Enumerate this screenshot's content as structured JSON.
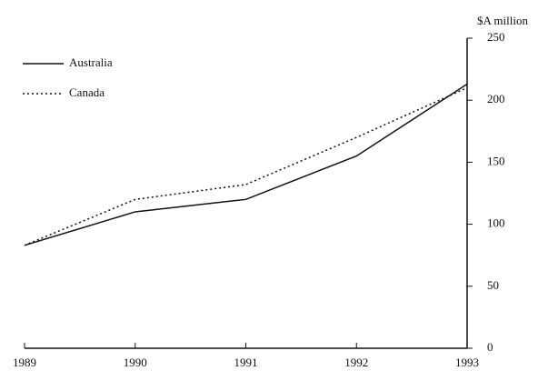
{
  "chart_data": {
    "type": "line",
    "y_label": "$A million",
    "x": [
      1989,
      1990,
      1991,
      1992,
      1993
    ],
    "series": [
      {
        "name": "Australia",
        "color": "#111111",
        "dash": "solid",
        "values": [
          83,
          110,
          120,
          155,
          213
        ]
      },
      {
        "name": "Canada",
        "color": "#111111",
        "dash": "dotted",
        "values": [
          83,
          120,
          132,
          170,
          210
        ]
      }
    ],
    "xlim": [
      1989,
      1993
    ],
    "xticks": [
      1989,
      1990,
      1991,
      1992,
      1993
    ],
    "ylim": [
      0,
      250
    ],
    "yticks": [
      0,
      50,
      100,
      150,
      200,
      250
    ],
    "y_axis_side": "right",
    "legend": "upper left",
    "grid": false
  }
}
